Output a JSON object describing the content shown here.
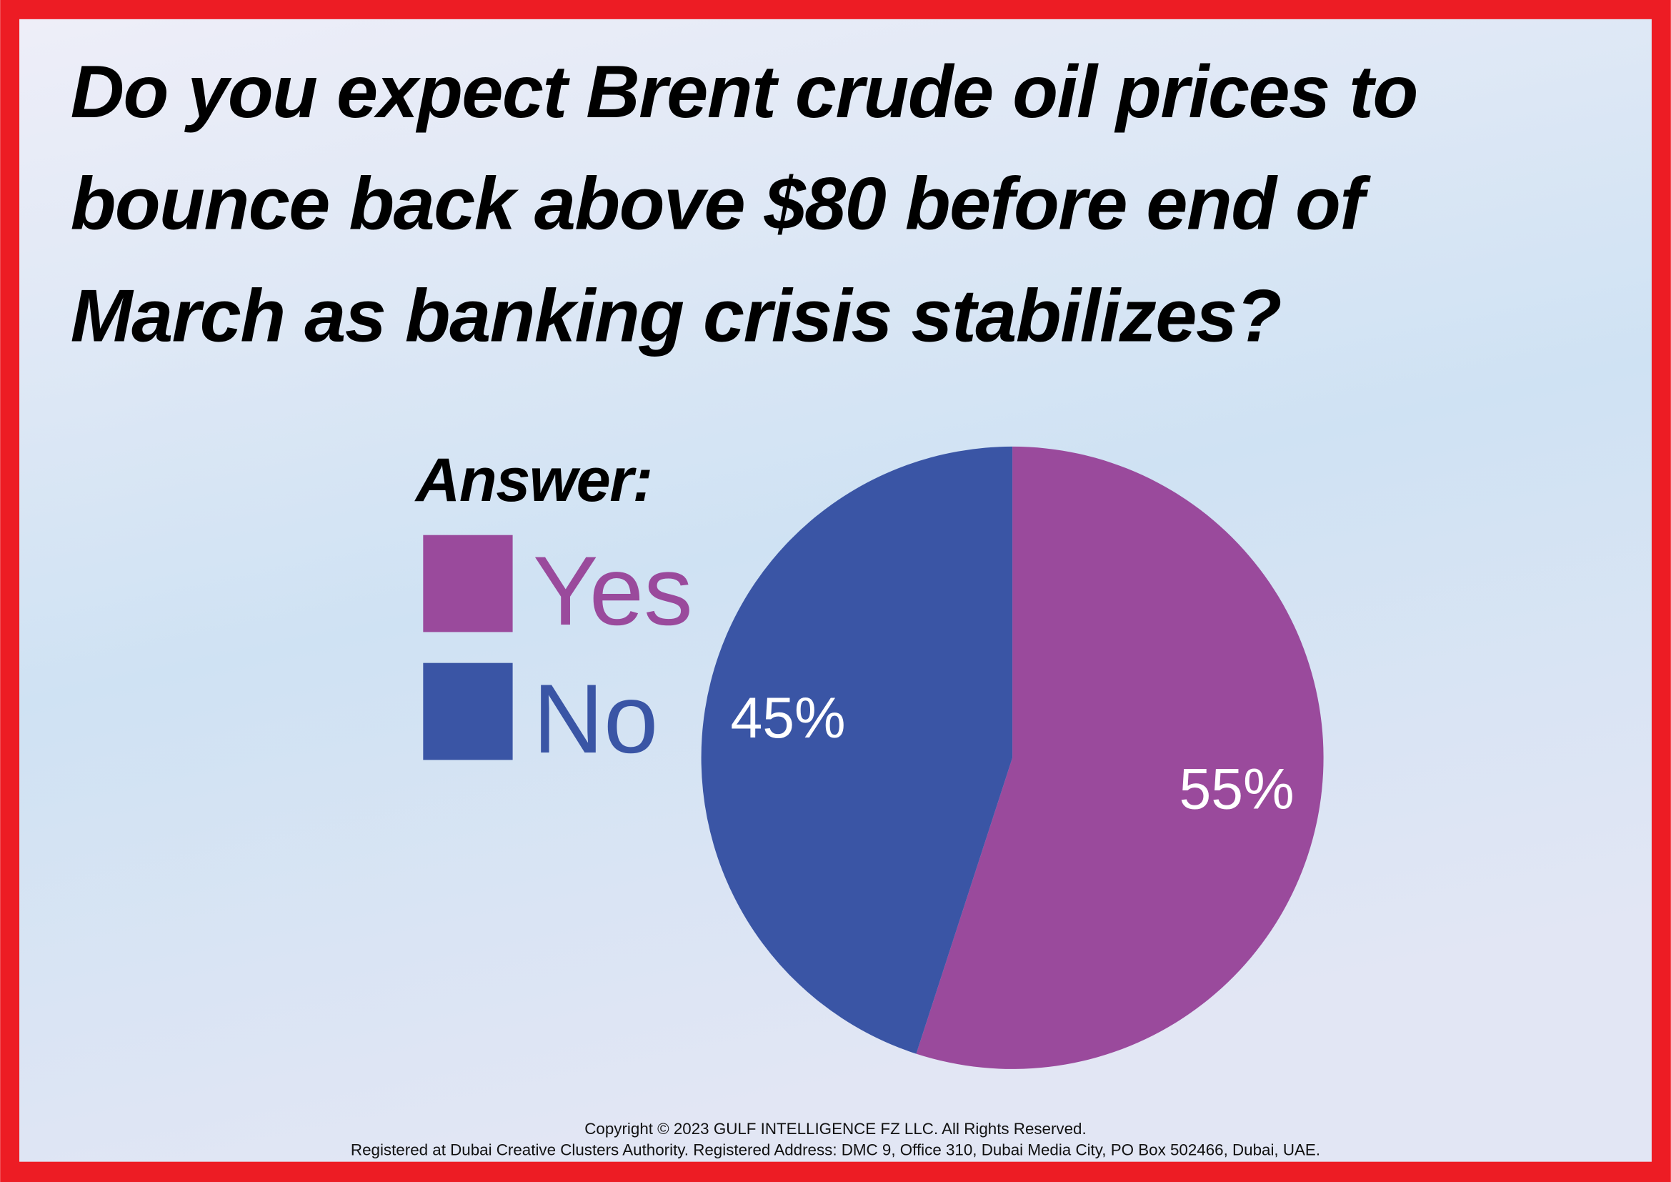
{
  "chart_data": {
    "type": "pie",
    "title": [
      "Do you expect Brent crude oil prices to",
      "bounce back above $80 before end of",
      "March as banking crisis stabilizes?"
    ],
    "legend_title": "Answer:",
    "categories": [
      "Yes",
      "No"
    ],
    "values": [
      55,
      45
    ],
    "value_labels": [
      "55%",
      "45%"
    ],
    "colors": [
      "#9a4a9c",
      "#3a55a5"
    ],
    "footer": [
      "Copyright © 2023 GULF INTELLIGENCE FZ LLC. All Rights Reserved.",
      "Registered at Dubai Creative Clusters Authority. Registered Address: DMC 9, Office 310, Dubai Media City, PO Box 502466, Dubai, UAE."
    ]
  }
}
